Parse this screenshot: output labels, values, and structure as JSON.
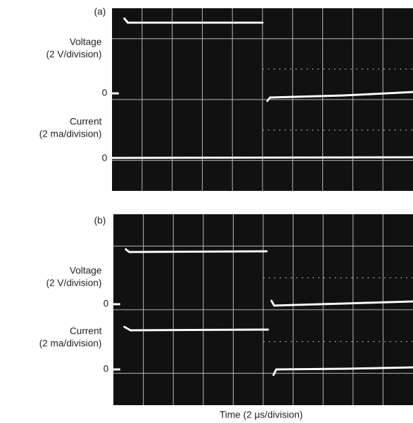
{
  "panels": [
    {
      "tag": "(a)",
      "voltage_label": "Voltage",
      "voltage_scale": "(2 V/division)",
      "voltage_zero": "0",
      "current_label": "Current",
      "current_scale": "(2 ma/division)",
      "current_zero": "0"
    },
    {
      "tag": "(b)",
      "voltage_label": "Voltage",
      "voltage_scale": "(2 V/division)",
      "voltage_zero": "0",
      "current_label": "Current",
      "current_scale": "(2 ma/division)",
      "current_zero": "0"
    }
  ],
  "x_axis_label": "Time (2 μs/division)"
}
